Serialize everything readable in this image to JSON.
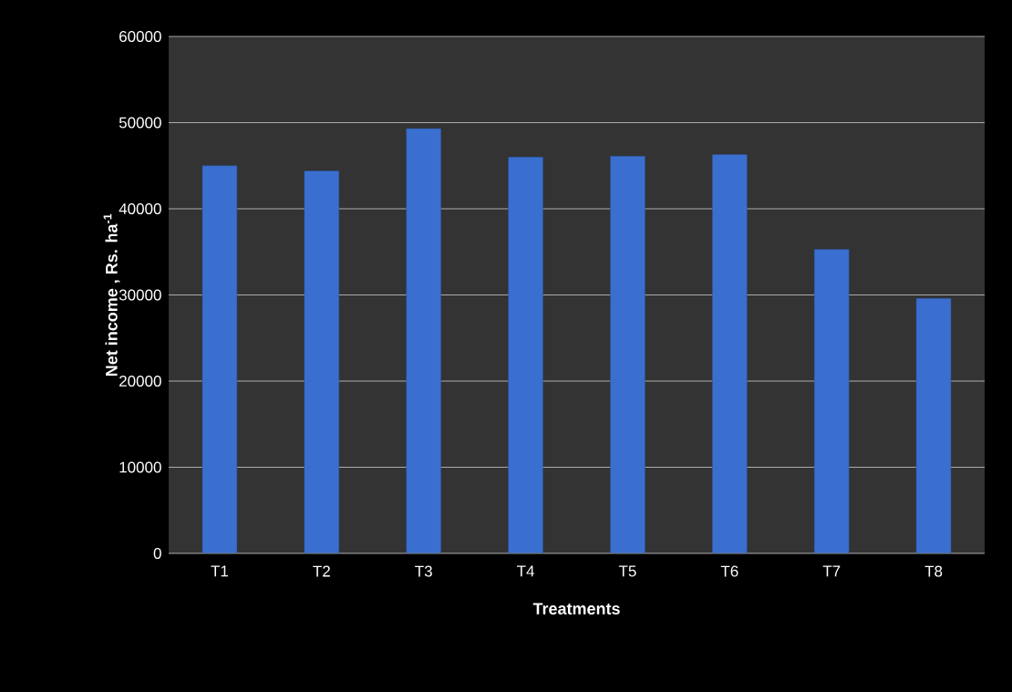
{
  "chart_data": {
    "type": "bar",
    "xlabel": "Treatments",
    "ylabel": "Net income , Rs. ha$^{-1}$",
    "categories": [
      "T1",
      "T2",
      "T3",
      "T4",
      "T5",
      "T6",
      "T7",
      "T8"
    ],
    "values": [
      45000,
      44400,
      49300,
      46000,
      46100,
      46300,
      35300,
      29600
    ],
    "color": "#3a6fd0",
    "ylim": [
      0,
      60000
    ],
    "yticks": [
      0,
      10000,
      20000,
      30000,
      40000,
      50000,
      60000
    ],
    "grid": "y"
  }
}
